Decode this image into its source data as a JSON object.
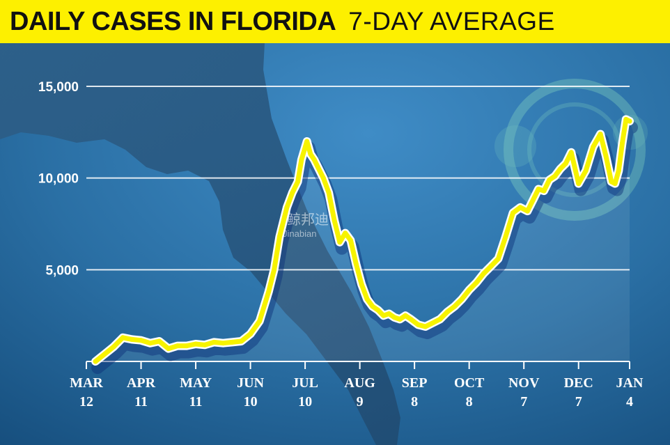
{
  "header": {
    "title": "DAILY CASES IN FLORIDA",
    "subtitle": "7-DAY AVERAGE"
  },
  "watermark": {
    "line1": "鲸邦迪",
    "line2": "Jinabian"
  },
  "colors": {
    "banner": "#fdf000",
    "line": "#f7f300",
    "shadow": "#0b2f78",
    "grid": "#ffffff",
    "text": "#ffffff"
  },
  "chart_data": {
    "type": "line",
    "title": "DAILY CASES IN FLORIDA 7-DAY AVERAGE",
    "ylim": [
      0,
      15000
    ],
    "yticks": [
      {
        "value": 5000,
        "label": "5,000"
      },
      {
        "value": 10000,
        "label": "10,000"
      },
      {
        "value": 15000,
        "label": "15,000"
      }
    ],
    "grid": true,
    "xrange": [
      0,
      298
    ],
    "xticks": [
      {
        "day": 0,
        "month": "MAR",
        "date": "12"
      },
      {
        "day": 30,
        "month": "APR",
        "date": "11"
      },
      {
        "day": 60,
        "month": "MAY",
        "date": "11"
      },
      {
        "day": 90,
        "month": "JUN",
        "date": "10"
      },
      {
        "day": 120,
        "month": "JUL",
        "date": "10"
      },
      {
        "day": 150,
        "month": "AUG",
        "date": "9"
      },
      {
        "day": 180,
        "month": "SEP",
        "date": "8"
      },
      {
        "day": 210,
        "month": "OCT",
        "date": "8"
      },
      {
        "day": 240,
        "month": "NOV",
        "date": "7"
      },
      {
        "day": 270,
        "month": "DEC",
        "date": "7"
      },
      {
        "day": 298,
        "month": "JAN",
        "date": "4"
      }
    ],
    "series": [
      {
        "name": "7-day average daily cases",
        "x": [
          5,
          10,
          15,
          20,
          25,
          30,
          35,
          40,
          45,
          50,
          55,
          60,
          65,
          70,
          75,
          80,
          85,
          90,
          95,
          100,
          103,
          106,
          110,
          113,
          116,
          118,
          121,
          123,
          125,
          127,
          130,
          133,
          136,
          139,
          142,
          145,
          148,
          151,
          154,
          157,
          160,
          163,
          166,
          169,
          172,
          175,
          178,
          182,
          186,
          190,
          194,
          198,
          202,
          206,
          210,
          214,
          218,
          222,
          226,
          230,
          234,
          238,
          242,
          245,
          248,
          251,
          254,
          257,
          260,
          263,
          266,
          270,
          274,
          278,
          282,
          285,
          288,
          290,
          292,
          294,
          296,
          298
        ],
        "values": [
          0,
          400,
          800,
          1300,
          1200,
          1150,
          1000,
          1100,
          700,
          850,
          850,
          950,
          900,
          1050,
          1000,
          1050,
          1100,
          1500,
          2200,
          3800,
          5000,
          6800,
          8400,
          9200,
          9800,
          11000,
          12000,
          11300,
          11000,
          10600,
          10000,
          9200,
          7700,
          6500,
          7000,
          6600,
          5300,
          4200,
          3400,
          3000,
          2800,
          2500,
          2600,
          2400,
          2300,
          2500,
          2300,
          2000,
          1900,
          2100,
          2300,
          2700,
          3000,
          3400,
          3900,
          4300,
          4800,
          5200,
          5600,
          6800,
          8100,
          8400,
          8200,
          8800,
          9400,
          9300,
          9900,
          10100,
          10500,
          10800,
          11400,
          9700,
          10400,
          11700,
          12400,
          11200,
          9800,
          9700,
          10400,
          11900,
          13200,
          13100
        ]
      }
    ]
  }
}
